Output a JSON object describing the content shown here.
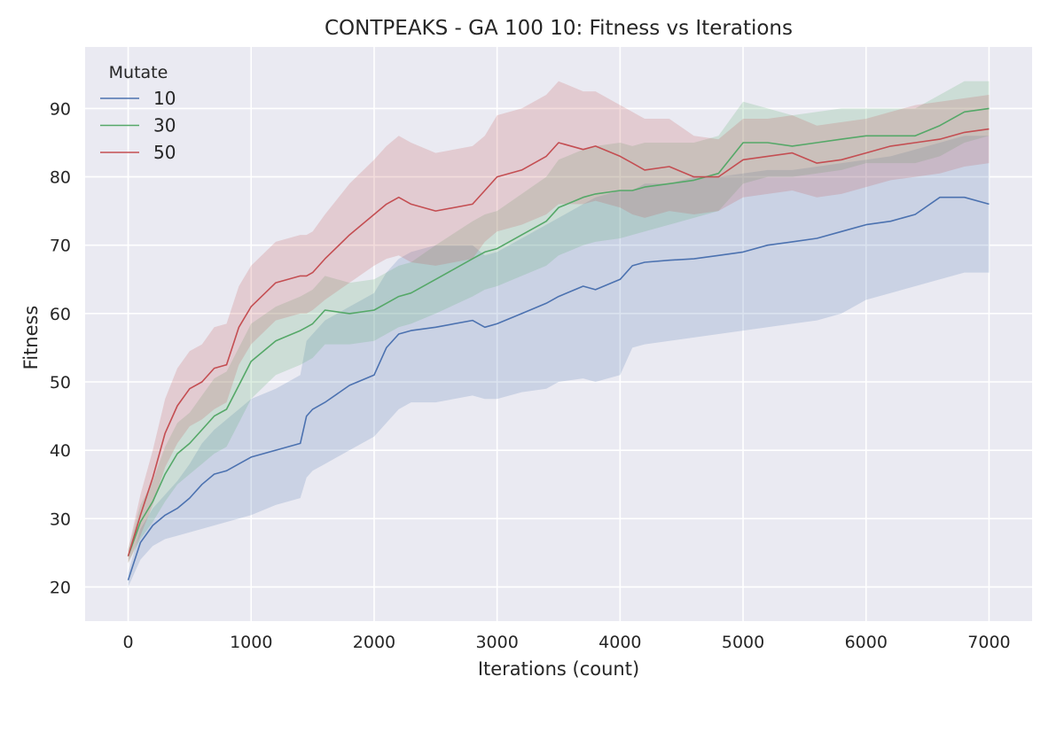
{
  "chart_data": {
    "type": "line",
    "title": "CONTPEAKS - GA 100 10: Fitness vs Iterations",
    "xlabel": "Iterations (count)",
    "ylabel": "Fitness",
    "xlim": [
      -350,
      7350
    ],
    "ylim": [
      15,
      99
    ],
    "xticks": [
      0,
      1000,
      2000,
      3000,
      4000,
      5000,
      6000,
      7000
    ],
    "yticks": [
      20,
      30,
      40,
      50,
      60,
      70,
      80,
      90
    ],
    "grid": true,
    "legend": {
      "title": "Mutate",
      "placement": "top-left"
    },
    "x": [
      0,
      100,
      200,
      300,
      400,
      500,
      600,
      700,
      800,
      900,
      1000,
      1200,
      1400,
      1450,
      1500,
      1600,
      1800,
      2000,
      2100,
      2200,
      2300,
      2500,
      2800,
      2900,
      3000,
      3200,
      3400,
      3500,
      3700,
      3800,
      4000,
      4100,
      4200,
      4400,
      4600,
      4800,
      5000,
      5200,
      5400,
      5600,
      5800,
      6000,
      6200,
      6400,
      6600,
      6800,
      7000
    ],
    "series": [
      {
        "name": "10",
        "color": "#4c72b0",
        "values": [
          21,
          26.5,
          29,
          30.5,
          31.5,
          33,
          35,
          36.5,
          37,
          38,
          39,
          40,
          41,
          45,
          46,
          47,
          49.5,
          51,
          55,
          57,
          57.5,
          58,
          59,
          58,
          58.5,
          60,
          61.5,
          62.5,
          64,
          63.5,
          65,
          67,
          67.5,
          67.8,
          68,
          68.5,
          69,
          70,
          70.5,
          71,
          72,
          73,
          73.5,
          74.5,
          77,
          77,
          76
        ],
        "lower": [
          20,
          24,
          26,
          27,
          27.5,
          28,
          28.5,
          29,
          29.5,
          30,
          30.5,
          32,
          33,
          36,
          37,
          38,
          40,
          42,
          44,
          46,
          47,
          47,
          48,
          47.5,
          47.5,
          48.5,
          49,
          50,
          50.5,
          50,
          51,
          55,
          55.5,
          56,
          56.5,
          57,
          57.5,
          58,
          58.5,
          59,
          60,
          62,
          63,
          64,
          65,
          66,
          66
        ],
        "upper": [
          22,
          28.5,
          31.5,
          33.5,
          35.5,
          38,
          41,
          43,
          44.5,
          46,
          47.5,
          49,
          51,
          56,
          57,
          59,
          61,
          63,
          66,
          68,
          69,
          70,
          70,
          68.5,
          69,
          71,
          73,
          74,
          76,
          77,
          78,
          78,
          79,
          79,
          80,
          80,
          80.5,
          81,
          81,
          81.5,
          82,
          82.5,
          83,
          84,
          85,
          86,
          86
        ]
      },
      {
        "name": "30",
        "color": "#55a868",
        "values": [
          24.5,
          29.5,
          32.5,
          36.5,
          39.5,
          41,
          43,
          45,
          46,
          49.5,
          53,
          56,
          57.5,
          58,
          58.5,
          60.5,
          60,
          60.5,
          61.5,
          62.5,
          63,
          65,
          68,
          69,
          69.5,
          71.5,
          73.5,
          75.5,
          77,
          77.5,
          78,
          78,
          78.5,
          79,
          79.5,
          80.5,
          85,
          85,
          84.5,
          85,
          85.5,
          86,
          86,
          86,
          87.5,
          89.5,
          90
        ],
        "lower": [
          23.5,
          27,
          29.5,
          32.5,
          35,
          36.5,
          38,
          39.5,
          40.5,
          44,
          47.5,
          51,
          52.5,
          53,
          53.5,
          55.5,
          55.5,
          56,
          57,
          58,
          58.5,
          60,
          62.5,
          63.5,
          64,
          65.5,
          67,
          68.5,
          70,
          70.5,
          71,
          71.5,
          72,
          73,
          74,
          75,
          79,
          80,
          80,
          80.5,
          81,
          82,
          82,
          82,
          83,
          85,
          86
        ],
        "upper": [
          25.5,
          32,
          35.5,
          40.5,
          44,
          45.5,
          48,
          50.5,
          51.5,
          55,
          58.5,
          61,
          62.5,
          63,
          63.5,
          65.5,
          64.5,
          65,
          66,
          67,
          67.5,
          70,
          73.5,
          74.5,
          75,
          77.5,
          80,
          82.5,
          84,
          84.5,
          85,
          84.5,
          85,
          85,
          85,
          86,
          91,
          90,
          89,
          89.5,
          90,
          90,
          90,
          90,
          92,
          94,
          94
        ]
      },
      {
        "name": "50",
        "color": "#c44e52",
        "values": [
          24.5,
          30.5,
          36,
          42.5,
          46.5,
          49,
          50,
          52,
          52.5,
          58,
          61,
          64.5,
          65.5,
          65.5,
          66,
          68,
          71.5,
          74.5,
          76,
          77,
          76,
          75,
          76,
          78,
          80,
          81,
          83,
          85,
          84,
          84.5,
          83,
          82,
          81,
          81.5,
          80,
          80,
          82.5,
          83,
          83.5,
          82,
          82.5,
          83.5,
          84.5,
          85,
          85.5,
          86.5,
          87
        ],
        "lower": [
          23.5,
          27.5,
          32,
          37.5,
          41,
          43.5,
          44.5,
          46,
          47,
          52.5,
          55.5,
          59,
          60,
          60,
          60.5,
          62,
          64.5,
          67,
          68,
          68.5,
          67.5,
          67,
          68,
          70.5,
          72,
          73,
          74.5,
          76,
          76,
          76.5,
          75.5,
          74.5,
          74,
          75,
          74.5,
          75,
          77,
          77.5,
          78,
          77,
          77.5,
          78.5,
          79.5,
          80,
          80.5,
          81.5,
          82
        ],
        "upper": [
          25.5,
          33.5,
          40,
          47.5,
          52,
          54.5,
          55.5,
          58,
          58.5,
          64,
          67,
          70.5,
          71.5,
          71.5,
          72,
          74.5,
          79,
          82.5,
          84.5,
          86,
          85,
          83.5,
          84.5,
          86,
          89,
          90,
          92,
          94,
          92.5,
          92.5,
          90.5,
          89.5,
          88.5,
          88.5,
          86,
          85.5,
          88.5,
          88.5,
          89,
          87.5,
          88,
          88.5,
          89.5,
          90.5,
          91,
          91.5,
          92
        ]
      }
    ]
  }
}
